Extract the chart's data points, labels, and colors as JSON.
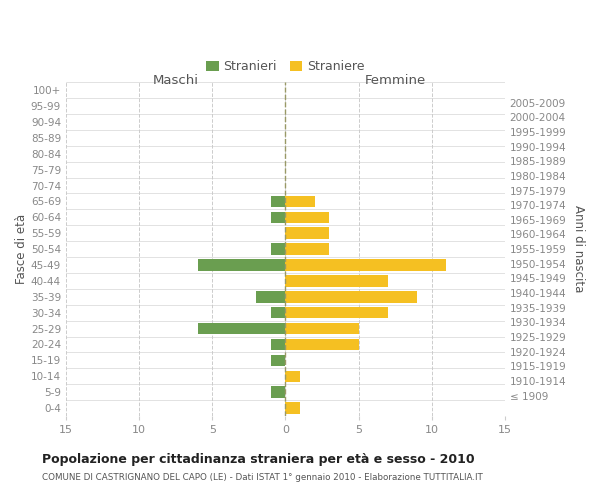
{
  "age_groups": [
    "100+",
    "95-99",
    "90-94",
    "85-89",
    "80-84",
    "75-79",
    "70-74",
    "65-69",
    "60-64",
    "55-59",
    "50-54",
    "45-49",
    "40-44",
    "35-39",
    "30-34",
    "25-29",
    "20-24",
    "15-19",
    "10-14",
    "5-9",
    "0-4"
  ],
  "birth_years": [
    "≤ 1909",
    "1910-1914",
    "1915-1919",
    "1920-1924",
    "1925-1929",
    "1930-1934",
    "1935-1939",
    "1940-1944",
    "1945-1949",
    "1950-1954",
    "1955-1959",
    "1960-1964",
    "1965-1969",
    "1970-1974",
    "1975-1979",
    "1980-1984",
    "1985-1989",
    "1990-1994",
    "1995-1999",
    "2000-2004",
    "2005-2009"
  ],
  "males": [
    0,
    0,
    0,
    0,
    0,
    0,
    0,
    1,
    1,
    0,
    1,
    6,
    0,
    2,
    1,
    6,
    1,
    1,
    0,
    1,
    0
  ],
  "females": [
    0,
    0,
    0,
    0,
    0,
    0,
    0,
    2,
    3,
    3,
    3,
    11,
    7,
    9,
    7,
    5,
    5,
    0,
    1,
    0,
    1
  ],
  "male_color": "#6a9e50",
  "female_color": "#f5c022",
  "bar_height": 0.72,
  "xlim": 15,
  "title": "Popolazione per cittadinanza straniera per età e sesso - 2010",
  "subtitle": "COMUNE DI CASTRIGNANO DEL CAPO (LE) - Dati ISTAT 1° gennaio 2010 - Elaborazione TUTTITALIA.IT",
  "left_header": "Maschi",
  "right_header": "Femmine",
  "y_label_left": "Fasce di età",
  "y_label_right": "Anni di nascita",
  "legend_male": "Stranieri",
  "legend_female": "Straniere",
  "grid_color": "#cccccc",
  "bg_color": "#ffffff",
  "text_color": "#555555",
  "tick_label_color": "#888888",
  "center_line_color": "#999966"
}
